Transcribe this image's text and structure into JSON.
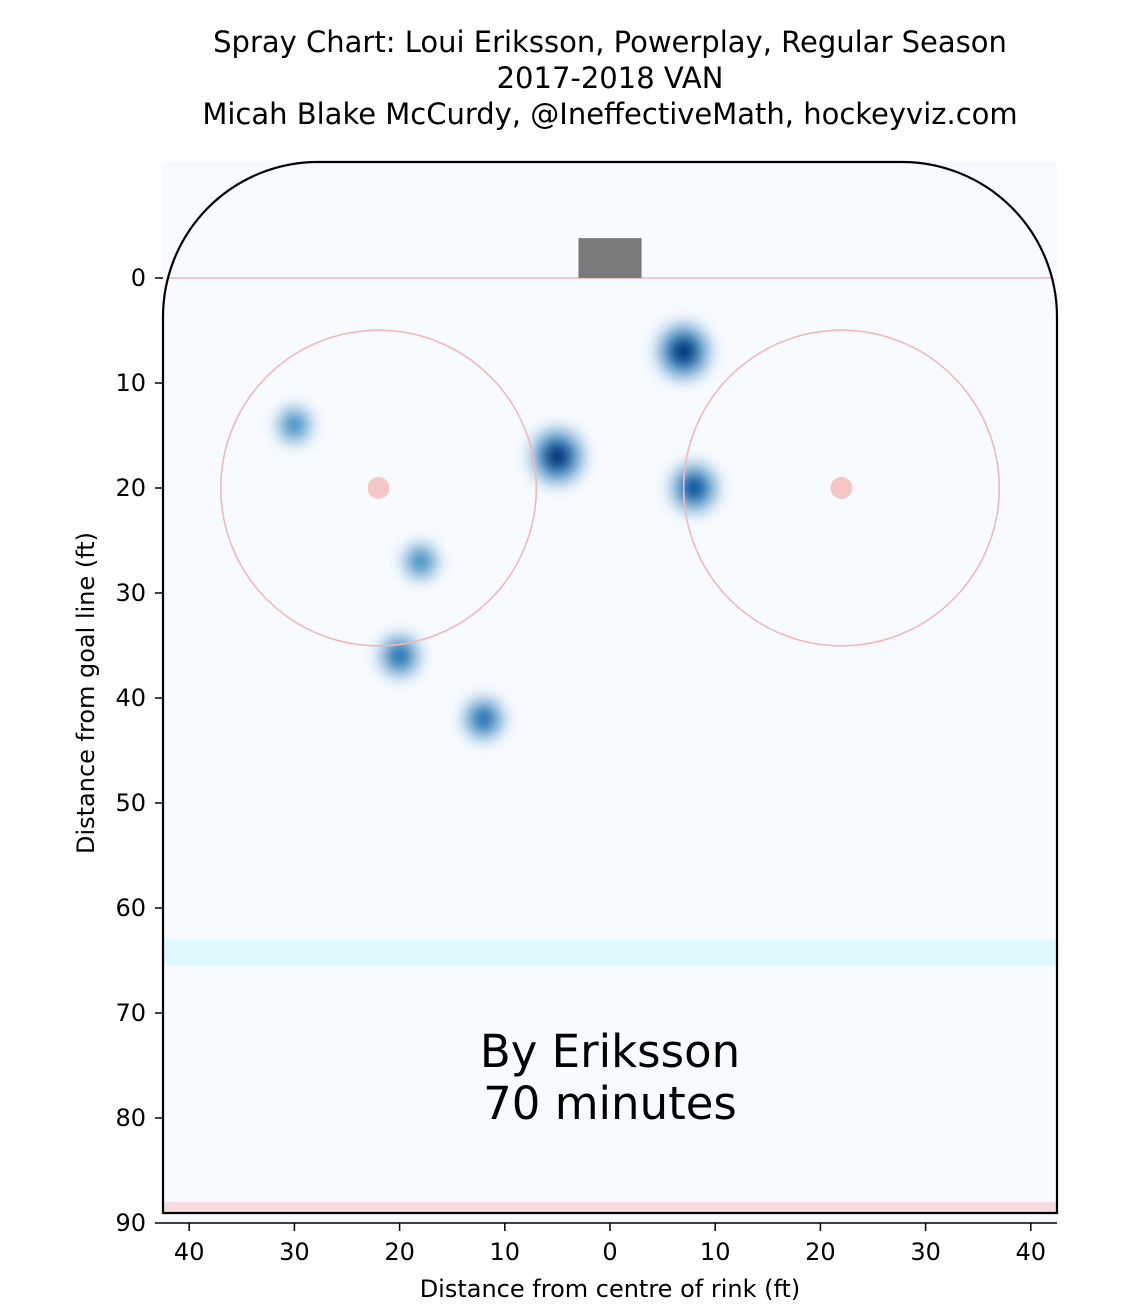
{
  "chart_data": {
    "type": "heatmap",
    "title_lines": [
      "Spray Chart: Loui Eriksson, Powerplay, Regular Season",
      "2017-2018 VAN",
      "Micah Blake McCurdy, @IneffectiveMath, hockeyviz.com"
    ],
    "xlabel": "Distance from centre of rink (ft)",
    "ylabel": "Distance from goal line (ft)",
    "xlim": [
      -42.5,
      42.5
    ],
    "ylim": [
      90,
      -11
    ],
    "x_ticks": [
      -40,
      -30,
      -20,
      -10,
      0,
      10,
      20,
      30,
      40
    ],
    "x_tick_labels": [
      "40",
      "30",
      "20",
      "10",
      "0",
      "10",
      "20",
      "30",
      "40"
    ],
    "y_ticks": [
      0,
      10,
      20,
      30,
      40,
      50,
      60,
      70,
      80,
      90
    ],
    "y_tick_labels": [
      "0",
      "10",
      "20",
      "30",
      "40",
      "50",
      "60",
      "70",
      "80",
      "90"
    ],
    "annotation_lines": [
      "By Eriksson",
      "70 minutes"
    ],
    "colors": {
      "background": "#f7fbff",
      "rink_outline": "#000000",
      "goal_line": "#f4c6c6",
      "faceoff_circle": "#f2b8b8",
      "faceoff_dot": "#f6c7c7",
      "net": "#7a7a7a",
      "blue_line": "#dff8fd",
      "centre_line": "#f6dbe0",
      "density_levels": [
        "#deebf7",
        "#c6dbef",
        "#9ecae1",
        "#6baed6",
        "#4292c6",
        "#2171b5",
        "#08519c",
        "#08306b"
      ]
    },
    "rink": {
      "goal_line_y": 0,
      "blue_line_y": [
        63,
        65.5
      ],
      "centre_line_y": [
        88,
        89.5
      ],
      "faceoff_circles": [
        {
          "x": -22,
          "y": 20,
          "r": 15
        },
        {
          "x": 22,
          "y": 20,
          "r": 15
        }
      ],
      "net": {
        "x": [
          -3,
          3
        ],
        "y": [
          -3.8,
          0
        ]
      }
    },
    "density_hotspots": [
      {
        "x": 7,
        "y": 7,
        "level": 7
      },
      {
        "x": -5,
        "y": 17,
        "level": 7
      },
      {
        "x": 8,
        "y": 20,
        "level": 6
      },
      {
        "x": -30,
        "y": 14,
        "level": 4
      },
      {
        "x": -18,
        "y": 27,
        "level": 4
      },
      {
        "x": -20,
        "y": 36,
        "level": 5
      },
      {
        "x": -12,
        "y": 42,
        "level": 5
      }
    ]
  }
}
